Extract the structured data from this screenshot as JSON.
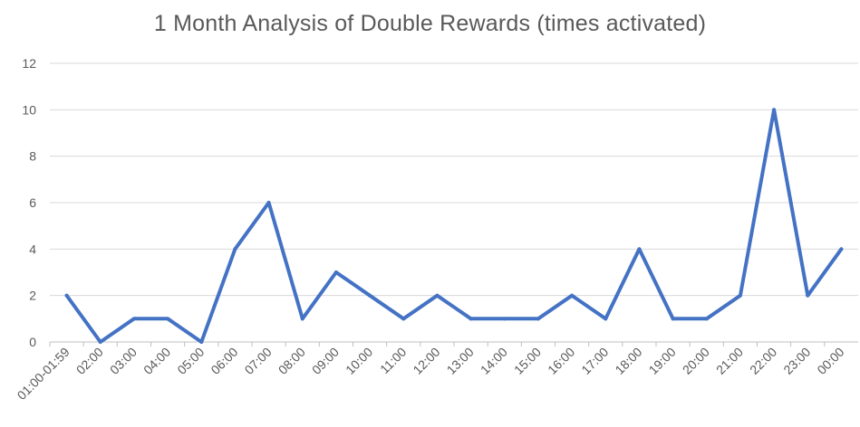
{
  "chart_data": {
    "type": "line",
    "title": "1 Month Analysis of Double Rewards (times activated)",
    "xlabel": "",
    "ylabel": "",
    "ylim": [
      0,
      12
    ],
    "yticks": [
      "0",
      "2",
      "4",
      "6",
      "8",
      "10",
      "12"
    ],
    "grid": true,
    "legend": "none",
    "categories": [
      "01:00-01:59",
      "02:00",
      "03:00",
      "04:00",
      "05:00",
      "06:00",
      "07:00",
      "08:00",
      "09:00",
      "10:00",
      "11:00",
      "12:00",
      "13:00",
      "14:00",
      "15:00",
      "16:00",
      "17:00",
      "18:00",
      "19:00",
      "20:00",
      "21:00",
      "22:00",
      "23:00",
      "00:00"
    ],
    "series": [
      {
        "values": [
          2,
          0,
          1,
          1,
          0,
          4,
          6,
          1,
          3,
          2,
          1,
          2,
          1,
          1,
          1,
          2,
          1,
          4,
          1,
          1,
          2,
          10,
          2,
          4
        ],
        "color": "#4472c4"
      }
    ]
  }
}
